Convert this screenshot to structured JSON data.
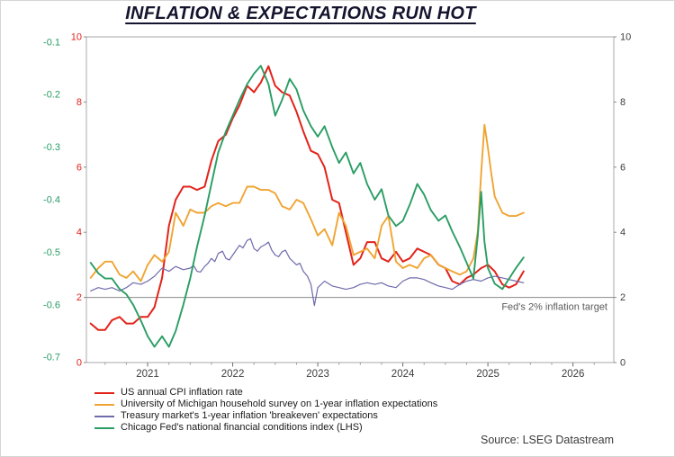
{
  "title": "INFLATION & EXPECTATIONS RUN HOT",
  "source": "Source: LSEG Datastream",
  "chart_data": {
    "type": "line",
    "title": "INFLATION & EXPECTATIONS RUN HOT",
    "xlabel": "",
    "ylabel": "",
    "grid": false,
    "legend_position": "bottom-left",
    "x_axis": {
      "min": 2020.28,
      "max": 2026.48,
      "ticks": [
        2021,
        2022,
        2023,
        2024,
        2025,
        2026
      ],
      "tick_labels": [
        "2021",
        "2022",
        "2023",
        "2024",
        "2025",
        "2026"
      ],
      "label_color": "#3d3d3d"
    },
    "rhs_axis": {
      "min": 0,
      "max": 10,
      "ticks": [
        0,
        2,
        4,
        6,
        8,
        10
      ],
      "left_label_color": "#e2231a",
      "right_label_color": "#3d3d3d"
    },
    "lhs_axis": {
      "min": -0.71,
      "max": -0.09,
      "ticks": [
        -0.1,
        -0.2,
        -0.3,
        -0.4,
        -0.5,
        -0.6,
        -0.7
      ],
      "label_color": "#2a9d64"
    },
    "target_line": {
      "value": 2,
      "axis": "rhs",
      "label": "Fed's 2% inflation target",
      "line_color": "#8a8a8a",
      "label_color": "#5a5a5a"
    },
    "series": [
      {
        "name": "US annual CPI inflation rate",
        "color": "#e2231a",
        "axis": "rhs",
        "points": [
          [
            2020.33,
            1.2
          ],
          [
            2020.42,
            1.0
          ],
          [
            2020.5,
            1.0
          ],
          [
            2020.58,
            1.3
          ],
          [
            2020.67,
            1.4
          ],
          [
            2020.75,
            1.2
          ],
          [
            2020.83,
            1.2
          ],
          [
            2020.92,
            1.4
          ],
          [
            2021.0,
            1.4
          ],
          [
            2021.08,
            1.7
          ],
          [
            2021.17,
            2.6
          ],
          [
            2021.25,
            4.2
          ],
          [
            2021.33,
            5.0
          ],
          [
            2021.42,
            5.4
          ],
          [
            2021.5,
            5.4
          ],
          [
            2021.58,
            5.3
          ],
          [
            2021.67,
            5.4
          ],
          [
            2021.75,
            6.2
          ],
          [
            2021.83,
            6.8
          ],
          [
            2021.92,
            7.0
          ],
          [
            2022.0,
            7.5
          ],
          [
            2022.08,
            7.9
          ],
          [
            2022.17,
            8.5
          ],
          [
            2022.25,
            8.3
          ],
          [
            2022.33,
            8.6
          ],
          [
            2022.42,
            9.1
          ],
          [
            2022.5,
            8.5
          ],
          [
            2022.58,
            8.3
          ],
          [
            2022.67,
            8.2
          ],
          [
            2022.75,
            7.7
          ],
          [
            2022.83,
            7.1
          ],
          [
            2022.92,
            6.5
          ],
          [
            2023.0,
            6.4
          ],
          [
            2023.08,
            6.0
          ],
          [
            2023.17,
            5.0
          ],
          [
            2023.25,
            4.9
          ],
          [
            2023.33,
            4.0
          ],
          [
            2023.42,
            3.0
          ],
          [
            2023.5,
            3.2
          ],
          [
            2023.58,
            3.7
          ],
          [
            2023.67,
            3.7
          ],
          [
            2023.75,
            3.2
          ],
          [
            2023.83,
            3.1
          ],
          [
            2023.92,
            3.4
          ],
          [
            2024.0,
            3.1
          ],
          [
            2024.08,
            3.2
          ],
          [
            2024.17,
            3.5
          ],
          [
            2024.25,
            3.4
          ],
          [
            2024.33,
            3.3
          ],
          [
            2024.42,
            3.0
          ],
          [
            2024.5,
            2.9
          ],
          [
            2024.58,
            2.5
          ],
          [
            2024.67,
            2.4
          ],
          [
            2024.75,
            2.6
          ],
          [
            2024.83,
            2.7
          ],
          [
            2024.92,
            2.9
          ],
          [
            2025.0,
            3.0
          ],
          [
            2025.08,
            2.8
          ],
          [
            2025.17,
            2.4
          ],
          [
            2025.25,
            2.3
          ],
          [
            2025.33,
            2.4
          ],
          [
            2025.42,
            2.8
          ]
        ]
      },
      {
        "name": "University of Michigan household survey on 1-year inflation expectations",
        "color": "#f0a432",
        "axis": "rhs",
        "points": [
          [
            2020.33,
            2.6
          ],
          [
            2020.42,
            2.9
          ],
          [
            2020.5,
            3.1
          ],
          [
            2020.58,
            3.1
          ],
          [
            2020.67,
            2.7
          ],
          [
            2020.75,
            2.6
          ],
          [
            2020.83,
            2.8
          ],
          [
            2020.92,
            2.5
          ],
          [
            2021.0,
            3.0
          ],
          [
            2021.08,
            3.3
          ],
          [
            2021.17,
            3.1
          ],
          [
            2021.25,
            3.4
          ],
          [
            2021.33,
            4.6
          ],
          [
            2021.42,
            4.2
          ],
          [
            2021.5,
            4.7
          ],
          [
            2021.58,
            4.6
          ],
          [
            2021.67,
            4.6
          ],
          [
            2021.75,
            4.8
          ],
          [
            2021.83,
            4.9
          ],
          [
            2021.92,
            4.8
          ],
          [
            2022.0,
            4.9
          ],
          [
            2022.08,
            4.9
          ],
          [
            2022.17,
            5.4
          ],
          [
            2022.25,
            5.4
          ],
          [
            2022.33,
            5.3
          ],
          [
            2022.42,
            5.3
          ],
          [
            2022.5,
            5.2
          ],
          [
            2022.58,
            4.8
          ],
          [
            2022.67,
            4.7
          ],
          [
            2022.75,
            5.0
          ],
          [
            2022.83,
            4.9
          ],
          [
            2022.92,
            4.4
          ],
          [
            2023.0,
            3.9
          ],
          [
            2023.08,
            4.1
          ],
          [
            2023.17,
            3.6
          ],
          [
            2023.25,
            4.6
          ],
          [
            2023.33,
            4.2
          ],
          [
            2023.42,
            3.3
          ],
          [
            2023.5,
            3.4
          ],
          [
            2023.58,
            3.5
          ],
          [
            2023.67,
            3.2
          ],
          [
            2023.75,
            4.2
          ],
          [
            2023.83,
            4.5
          ],
          [
            2023.92,
            3.1
          ],
          [
            2024.0,
            2.9
          ],
          [
            2024.08,
            3.0
          ],
          [
            2024.17,
            2.9
          ],
          [
            2024.25,
            3.2
          ],
          [
            2024.33,
            3.3
          ],
          [
            2024.42,
            3.0
          ],
          [
            2024.5,
            2.9
          ],
          [
            2024.58,
            2.8
          ],
          [
            2024.67,
            2.7
          ],
          [
            2024.75,
            2.8
          ],
          [
            2024.83,
            3.2
          ],
          [
            2024.88,
            4.0
          ],
          [
            2024.92,
            5.8
          ],
          [
            2024.96,
            7.3
          ],
          [
            2025.0,
            6.6
          ],
          [
            2025.04,
            5.8
          ],
          [
            2025.08,
            5.1
          ],
          [
            2025.17,
            4.6
          ],
          [
            2025.25,
            4.5
          ],
          [
            2025.33,
            4.5
          ],
          [
            2025.42,
            4.6
          ]
        ]
      },
      {
        "name": "Treasury market's 1-year inflation 'breakeven' expectations",
        "color": "#6e6aab",
        "axis": "rhs",
        "points": [
          [
            2020.33,
            2.2
          ],
          [
            2020.42,
            2.3
          ],
          [
            2020.5,
            2.25
          ],
          [
            2020.58,
            2.3
          ],
          [
            2020.67,
            2.2
          ],
          [
            2020.75,
            2.3
          ],
          [
            2020.83,
            2.45
          ],
          [
            2020.92,
            2.4
          ],
          [
            2021.0,
            2.5
          ],
          [
            2021.08,
            2.65
          ],
          [
            2021.17,
            2.9
          ],
          [
            2021.25,
            2.8
          ],
          [
            2021.33,
            2.95
          ],
          [
            2021.42,
            2.85
          ],
          [
            2021.5,
            2.9
          ],
          [
            2021.54,
            2.98
          ],
          [
            2021.58,
            2.8
          ],
          [
            2021.62,
            2.78
          ],
          [
            2021.67,
            2.95
          ],
          [
            2021.71,
            3.05
          ],
          [
            2021.75,
            3.2
          ],
          [
            2021.79,
            3.1
          ],
          [
            2021.83,
            3.35
          ],
          [
            2021.88,
            3.42
          ],
          [
            2021.92,
            3.2
          ],
          [
            2021.96,
            3.15
          ],
          [
            2022.0,
            3.3
          ],
          [
            2022.04,
            3.45
          ],
          [
            2022.08,
            3.6
          ],
          [
            2022.12,
            3.52
          ],
          [
            2022.17,
            3.75
          ],
          [
            2022.21,
            3.8
          ],
          [
            2022.25,
            3.5
          ],
          [
            2022.29,
            3.42
          ],
          [
            2022.33,
            3.55
          ],
          [
            2022.38,
            3.62
          ],
          [
            2022.42,
            3.7
          ],
          [
            2022.46,
            3.45
          ],
          [
            2022.5,
            3.3
          ],
          [
            2022.54,
            3.25
          ],
          [
            2022.58,
            3.4
          ],
          [
            2022.62,
            3.45
          ],
          [
            2022.67,
            3.2
          ],
          [
            2022.71,
            3.1
          ],
          [
            2022.75,
            3.0
          ],
          [
            2022.79,
            3.05
          ],
          [
            2022.83,
            2.8
          ],
          [
            2022.88,
            2.65
          ],
          [
            2022.92,
            2.4
          ],
          [
            2022.96,
            1.75
          ],
          [
            2023.0,
            2.3
          ],
          [
            2023.08,
            2.5
          ],
          [
            2023.17,
            2.35
          ],
          [
            2023.25,
            2.3
          ],
          [
            2023.33,
            2.25
          ],
          [
            2023.42,
            2.3
          ],
          [
            2023.5,
            2.4
          ],
          [
            2023.58,
            2.45
          ],
          [
            2023.67,
            2.4
          ],
          [
            2023.75,
            2.45
          ],
          [
            2023.83,
            2.35
          ],
          [
            2023.92,
            2.3
          ],
          [
            2024.0,
            2.5
          ],
          [
            2024.08,
            2.6
          ],
          [
            2024.17,
            2.6
          ],
          [
            2024.25,
            2.55
          ],
          [
            2024.33,
            2.45
          ],
          [
            2024.42,
            2.35
          ],
          [
            2024.5,
            2.3
          ],
          [
            2024.58,
            2.25
          ],
          [
            2024.67,
            2.4
          ],
          [
            2024.75,
            2.5
          ],
          [
            2024.83,
            2.55
          ],
          [
            2024.92,
            2.5
          ],
          [
            2025.0,
            2.6
          ],
          [
            2025.08,
            2.65
          ],
          [
            2025.17,
            2.6
          ],
          [
            2025.25,
            2.55
          ],
          [
            2025.33,
            2.5
          ],
          [
            2025.42,
            2.45
          ]
        ]
      },
      {
        "name": "Chicago Fed's national financial conditions index (LHS)",
        "color": "#2a9d64",
        "axis": "lhs",
        "points": [
          [
            2020.33,
            -0.52
          ],
          [
            2020.42,
            -0.54
          ],
          [
            2020.5,
            -0.55
          ],
          [
            2020.58,
            -0.55
          ],
          [
            2020.67,
            -0.57
          ],
          [
            2020.75,
            -0.58
          ],
          [
            2020.83,
            -0.6
          ],
          [
            2020.92,
            -0.63
          ],
          [
            2021.0,
            -0.66
          ],
          [
            2021.08,
            -0.68
          ],
          [
            2021.17,
            -0.66
          ],
          [
            2021.25,
            -0.68
          ],
          [
            2021.33,
            -0.65
          ],
          [
            2021.42,
            -0.6
          ],
          [
            2021.5,
            -0.55
          ],
          [
            2021.58,
            -0.49
          ],
          [
            2021.67,
            -0.43
          ],
          [
            2021.75,
            -0.37
          ],
          [
            2021.83,
            -0.31
          ],
          [
            2021.92,
            -0.27
          ],
          [
            2022.0,
            -0.24
          ],
          [
            2022.08,
            -0.21
          ],
          [
            2022.17,
            -0.18
          ],
          [
            2022.25,
            -0.16
          ],
          [
            2022.33,
            -0.145
          ],
          [
            2022.42,
            -0.18
          ],
          [
            2022.5,
            -0.24
          ],
          [
            2022.58,
            -0.21
          ],
          [
            2022.67,
            -0.17
          ],
          [
            2022.75,
            -0.19
          ],
          [
            2022.83,
            -0.23
          ],
          [
            2022.92,
            -0.26
          ],
          [
            2023.0,
            -0.28
          ],
          [
            2023.08,
            -0.26
          ],
          [
            2023.17,
            -0.3
          ],
          [
            2023.25,
            -0.33
          ],
          [
            2023.33,
            -0.31
          ],
          [
            2023.42,
            -0.35
          ],
          [
            2023.5,
            -0.33
          ],
          [
            2023.58,
            -0.37
          ],
          [
            2023.67,
            -0.4
          ],
          [
            2023.75,
            -0.38
          ],
          [
            2023.83,
            -0.43
          ],
          [
            2023.92,
            -0.45
          ],
          [
            2024.0,
            -0.44
          ],
          [
            2024.08,
            -0.41
          ],
          [
            2024.17,
            -0.37
          ],
          [
            2024.25,
            -0.39
          ],
          [
            2024.33,
            -0.42
          ],
          [
            2024.42,
            -0.44
          ],
          [
            2024.5,
            -0.43
          ],
          [
            2024.58,
            -0.46
          ],
          [
            2024.67,
            -0.49
          ],
          [
            2024.75,
            -0.52
          ],
          [
            2024.83,
            -0.55
          ],
          [
            2024.88,
            -0.47
          ],
          [
            2024.92,
            -0.385
          ],
          [
            2024.96,
            -0.48
          ],
          [
            2025.0,
            -0.53
          ],
          [
            2025.08,
            -0.56
          ],
          [
            2025.17,
            -0.57
          ],
          [
            2025.25,
            -0.55
          ],
          [
            2025.33,
            -0.53
          ],
          [
            2025.42,
            -0.51
          ]
        ]
      }
    ]
  }
}
